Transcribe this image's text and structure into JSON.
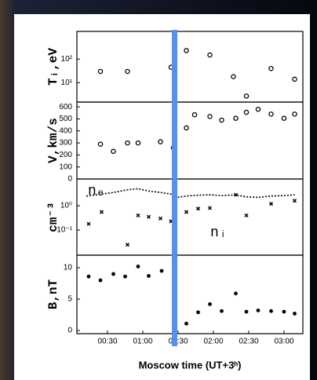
{
  "chart_data": [
    {
      "type": "scatter",
      "ylabel": "Tᵢ,eV",
      "ylog": true,
      "ylim": [
        1.5,
        1500
      ],
      "yticks": [
        {
          "value": 10,
          "label": "10¹"
        },
        {
          "value": 100,
          "label": "10²"
        }
      ],
      "series": [
        {
          "marker": "circle-open",
          "color": "#000000",
          "x": [
            24,
            47,
            84,
            97,
            117,
            137,
            148,
            169,
            189
          ],
          "values": [
            30,
            30,
            45,
            230,
            150,
            18,
            2.7,
            40,
            14
          ]
        }
      ]
    },
    {
      "type": "scatter",
      "ylabel": "V,km/s",
      "ylim": [
        0,
        640
      ],
      "yticks": [
        0,
        100,
        200,
        300,
        400,
        500,
        600
      ],
      "series": [
        {
          "marker": "circle-open",
          "color": "#000000",
          "x": [
            24,
            35,
            47,
            56,
            75,
            86,
            97,
            104,
            117,
            127,
            139,
            148,
            158,
            169,
            180,
            189
          ],
          "values": [
            290,
            230,
            300,
            300,
            310,
            260,
            425,
            535,
            520,
            490,
            505,
            555,
            580,
            540,
            505,
            540
          ]
        }
      ]
    },
    {
      "type": "scatter",
      "ylabel": "cm⁻³",
      "ylog": true,
      "ylim": [
        0.0093,
        12.5
      ],
      "yticks": [
        {
          "value": 0.1,
          "label": "10⁻¹"
        },
        {
          "value": 1,
          "label": "10⁰"
        }
      ],
      "annotations": [
        "nₑ",
        "nᵢ"
      ],
      "series": [
        {
          "marker": "dotted-line",
          "color": "#000000",
          "x": [
            12,
            25,
            35,
            47,
            56,
            65,
            75,
            84,
            87,
            97,
            107,
            117,
            127,
            139,
            148,
            158,
            169,
            180,
            189
          ],
          "values": [
            2.5,
            3,
            3.5,
            4.5,
            5,
            4,
            3.5,
            3,
            2.1,
            2.5,
            2.7,
            2.8,
            2.6,
            2.8,
            2.3,
            2.2,
            2.5,
            2.6,
            2.8
          ]
        },
        {
          "marker": "x",
          "color": "#000000",
          "x": [
            14,
            25,
            47,
            56,
            65,
            75,
            84,
            97,
            107,
            117,
            139,
            148,
            169,
            189
          ],
          "values": [
            0.18,
            0.55,
            0.025,
            0.4,
            0.35,
            0.3,
            0.23,
            0.55,
            0.76,
            0.8,
            2.8,
            0.4,
            1.2,
            1.6
          ]
        }
      ]
    },
    {
      "type": "scatter",
      "ylabel": "B,nT",
      "ylim": [
        -0.5,
        12
      ],
      "yticks": [
        0,
        5,
        10
      ],
      "xlabel": "Moscow  time (UT+3ʰ)",
      "xlim": [
        4,
        196
      ],
      "xticks": [
        {
          "value": 30,
          "label": "00:30"
        },
        {
          "value": 60,
          "label": "01:00"
        },
        {
          "value": 90,
          "label": "01:30"
        },
        {
          "value": 120,
          "label": "02:00"
        },
        {
          "value": 150,
          "label": "02:30"
        },
        {
          "value": 180,
          "label": "03:00"
        }
      ],
      "marker_line": {
        "x": 87,
        "color": "#5b8ee8"
      },
      "series": [
        {
          "marker": "dot",
          "color": "#000000",
          "x": [
            14,
            24,
            35,
            45,
            56,
            65,
            76,
            97,
            107,
            117,
            127,
            139,
            148,
            158,
            169,
            180,
            189
          ],
          "values": [
            8.6,
            8,
            9,
            8.6,
            10.2,
            8.7,
            9.5,
            1.1,
            2.9,
            4.2,
            3.1,
            5.9,
            3,
            3.2,
            3.1,
            3,
            2.7
          ]
        }
      ]
    }
  ]
}
